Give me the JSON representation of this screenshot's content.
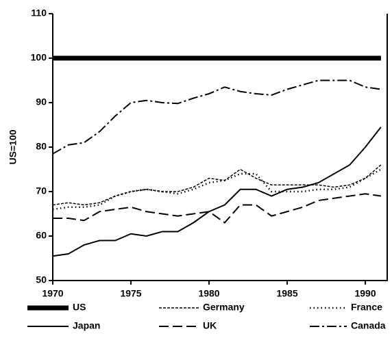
{
  "chart_data": {
    "type": "line",
    "ylabel": "US=100",
    "x": [
      1970,
      1971,
      1972,
      1973,
      1974,
      1975,
      1976,
      1977,
      1978,
      1979,
      1980,
      1981,
      1982,
      1983,
      1984,
      1985,
      1986,
      1987,
      1988,
      1989,
      1990,
      1991
    ],
    "series": [
      {
        "name": "US",
        "color": "#000000",
        "width": 7,
        "dash": "none",
        "values": [
          100,
          100,
          100,
          100,
          100,
          100,
          100,
          100,
          100,
          100,
          100,
          100,
          100,
          100,
          100,
          100,
          100,
          100,
          100,
          100,
          100,
          100
        ]
      },
      {
        "name": "Germany",
        "color": "#000000",
        "width": 1.5,
        "dash": "4 2",
        "values": [
          67,
          67.5,
          67,
          67.5,
          69,
          70,
          70.5,
          70,
          70,
          71,
          73,
          72.5,
          75,
          73,
          71.5,
          71.5,
          71.5,
          71.5,
          71,
          71.5,
          73,
          76
        ]
      },
      {
        "name": "France",
        "color": "#000000",
        "width": 2.5,
        "dash": "1.5 4",
        "values": [
          66,
          66.5,
          66.5,
          67,
          69,
          70,
          70.5,
          70,
          69.5,
          70.5,
          72,
          72.5,
          74,
          74,
          70,
          70,
          70,
          70.5,
          70.5,
          71,
          73,
          75
        ]
      },
      {
        "name": "Japan",
        "color": "#000000",
        "width": 2,
        "dash": "none",
        "values": [
          55.5,
          56,
          58,
          59,
          59,
          60.5,
          60,
          61,
          61,
          63,
          65.5,
          67,
          70.5,
          70.5,
          69,
          70.5,
          71,
          72,
          74,
          76,
          80,
          84.5
        ]
      },
      {
        "name": "UK",
        "color": "#000000",
        "width": 2,
        "dash": "14 6",
        "values": [
          64,
          64,
          63.5,
          65.5,
          66,
          66.5,
          65.5,
          65,
          64.5,
          65,
          65.5,
          63,
          67,
          67,
          64.5,
          65.5,
          66.5,
          68,
          68.5,
          69,
          69.5,
          69
        ]
      },
      {
        "name": "Canada",
        "color": "#000000",
        "width": 2,
        "dash": "14 4 3 4",
        "values": [
          78.5,
          80.5,
          81,
          83.5,
          87,
          90,
          90.5,
          90,
          89.8,
          91,
          92,
          93.5,
          92.5,
          92,
          91.7,
          93,
          94,
          95,
          95,
          95,
          93.5,
          93
        ]
      }
    ],
    "xlim": [
      1970,
      1991.4
    ],
    "xticks": [
      1970,
      1975,
      1980,
      1985,
      1990
    ],
    "ylim": [
      50,
      110
    ],
    "yticks": [
      50,
      60,
      70,
      80,
      90,
      100,
      110
    ],
    "grid": false
  }
}
